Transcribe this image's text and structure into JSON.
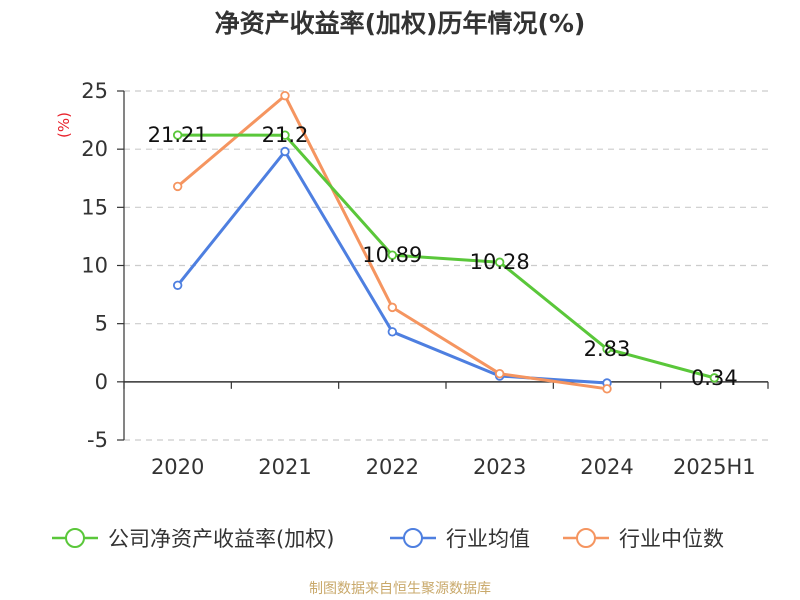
{
  "title": "净资产收益率(加权)历年情况(%)",
  "source": "制图数据来自恒生聚源数据库",
  "chart_data": {
    "type": "line",
    "title": "净资产收益率(加权)历年情况(%)",
    "y_unit": "(%)",
    "categories": [
      "2020",
      "2021",
      "2022",
      "2023",
      "2024",
      "2025H1"
    ],
    "ylim": [
      -5,
      25
    ],
    "yticks": [
      25,
      20,
      15,
      10,
      5,
      0,
      -5
    ],
    "grid": true,
    "legend_position": "bottom",
    "series": [
      {
        "name": "公司净资产收益率(加权)",
        "color": "#5ac73a",
        "values": [
          21.21,
          21.2,
          10.89,
          10.28,
          2.83,
          0.34
        ],
        "labels": [
          "21.21",
          "21.2",
          "10.89",
          "10.28",
          "2.83",
          "0.34"
        ]
      },
      {
        "name": "行业均值",
        "color": "#4e7fe0",
        "values": [
          8.3,
          19.8,
          4.3,
          0.5,
          -0.1,
          null
        ]
      },
      {
        "name": "行业中位数",
        "color": "#f59560",
        "values": [
          16.8,
          24.6,
          6.4,
          0.7,
          -0.6,
          null
        ]
      }
    ]
  }
}
